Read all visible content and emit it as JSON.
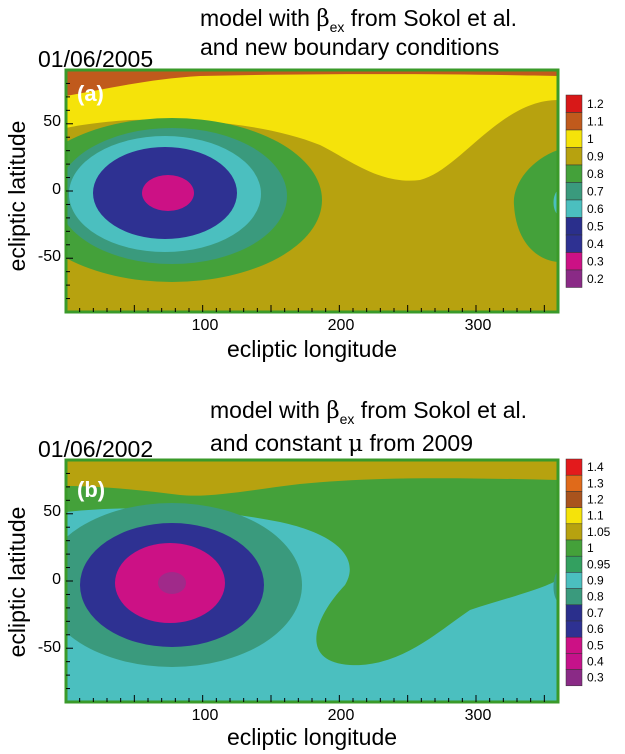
{
  "chart_data": [
    {
      "type": "heatmap",
      "panel_label": "(a)",
      "date": "01/06/2005",
      "title_line1_pre": "model with ",
      "title_beta": "β",
      "title_sub": "ex",
      "title_line1_post": " from Sokol et al.",
      "title_line2": "and new boundary conditions",
      "xlabel": "ecliptic longitude",
      "ylabel": "ecliptic latitude",
      "xlim": [
        0,
        360
      ],
      "ylim": [
        -90,
        90
      ],
      "x_ticks": [
        "100",
        "200",
        "300"
      ],
      "y_ticks": [
        "50",
        "0",
        "-50"
      ],
      "colorbar": [
        {
          "label": "1.2",
          "color": "#d81818"
        },
        {
          "label": "1.1",
          "color": "#c05a1c"
        },
        {
          "label": "1",
          "color": "#f5e30a"
        },
        {
          "label": "0.9",
          "color": "#b7a20f"
        },
        {
          "label": "0.8",
          "color": "#44a13a"
        },
        {
          "label": "0.7",
          "color": "#3a9a7d"
        },
        {
          "label": "0.6",
          "color": "#4bbfbf"
        },
        {
          "label": "0.5",
          "color": "#2a2f8c"
        },
        {
          "label": "0.4",
          "color": "#2e3192"
        },
        {
          "label": "0.3",
          "color": "#cc1185"
        },
        {
          "label": "0.2",
          "color": "#8a2a86"
        }
      ],
      "features": {
        "background_level": "0.9",
        "minimum": {
          "lon": 75,
          "lat": -5,
          "value": "0.3"
        },
        "band_top": "1",
        "band_cap": "1.1",
        "right_edge_feature": "0.8"
      }
    },
    {
      "type": "heatmap",
      "panel_label": "(b)",
      "date": "01/06/2002",
      "title_line1_pre": "model with ",
      "title_beta": "β",
      "title_sub": "ex",
      "title_line1_post": " from Sokol et al.",
      "title_line2_pre": "and constant ",
      "title_mu": "μ",
      "title_line2_post": " from 2009",
      "xlabel": "ecliptic longitude",
      "ylabel": "ecliptic latitude",
      "xlim": [
        0,
        360
      ],
      "ylim": [
        -90,
        90
      ],
      "x_ticks": [
        "100",
        "200",
        "300"
      ],
      "y_ticks": [
        "50",
        "0",
        "-50"
      ],
      "colorbar": [
        {
          "label": "1.4",
          "color": "#e31a1c"
        },
        {
          "label": "1.3",
          "color": "#e06a1a"
        },
        {
          "label": "1.2",
          "color": "#a9531d"
        },
        {
          "label": "1.1",
          "color": "#f5e30a"
        },
        {
          "label": "1.05",
          "color": "#b7a20f"
        },
        {
          "label": "1",
          "color": "#44a13a"
        },
        {
          "label": "0.95",
          "color": "#33a060"
        },
        {
          "label": "0.9",
          "color": "#4bbfbf"
        },
        {
          "label": "0.8",
          "color": "#3a9a7d"
        },
        {
          "label": "0.7",
          "color": "#2a2f8c"
        },
        {
          "label": "0.6",
          "color": "#2e3192"
        },
        {
          "label": "0.5",
          "color": "#cc1185"
        },
        {
          "label": "0.4",
          "color": "#c5128a"
        },
        {
          "label": "0.3",
          "color": "#8a2a86"
        }
      ],
      "features": {
        "background_level": "0.9",
        "minimum": {
          "lon": 75,
          "lat": -5,
          "value": "0.4"
        },
        "band_top": "1.05",
        "green_region": "0.95"
      }
    }
  ]
}
